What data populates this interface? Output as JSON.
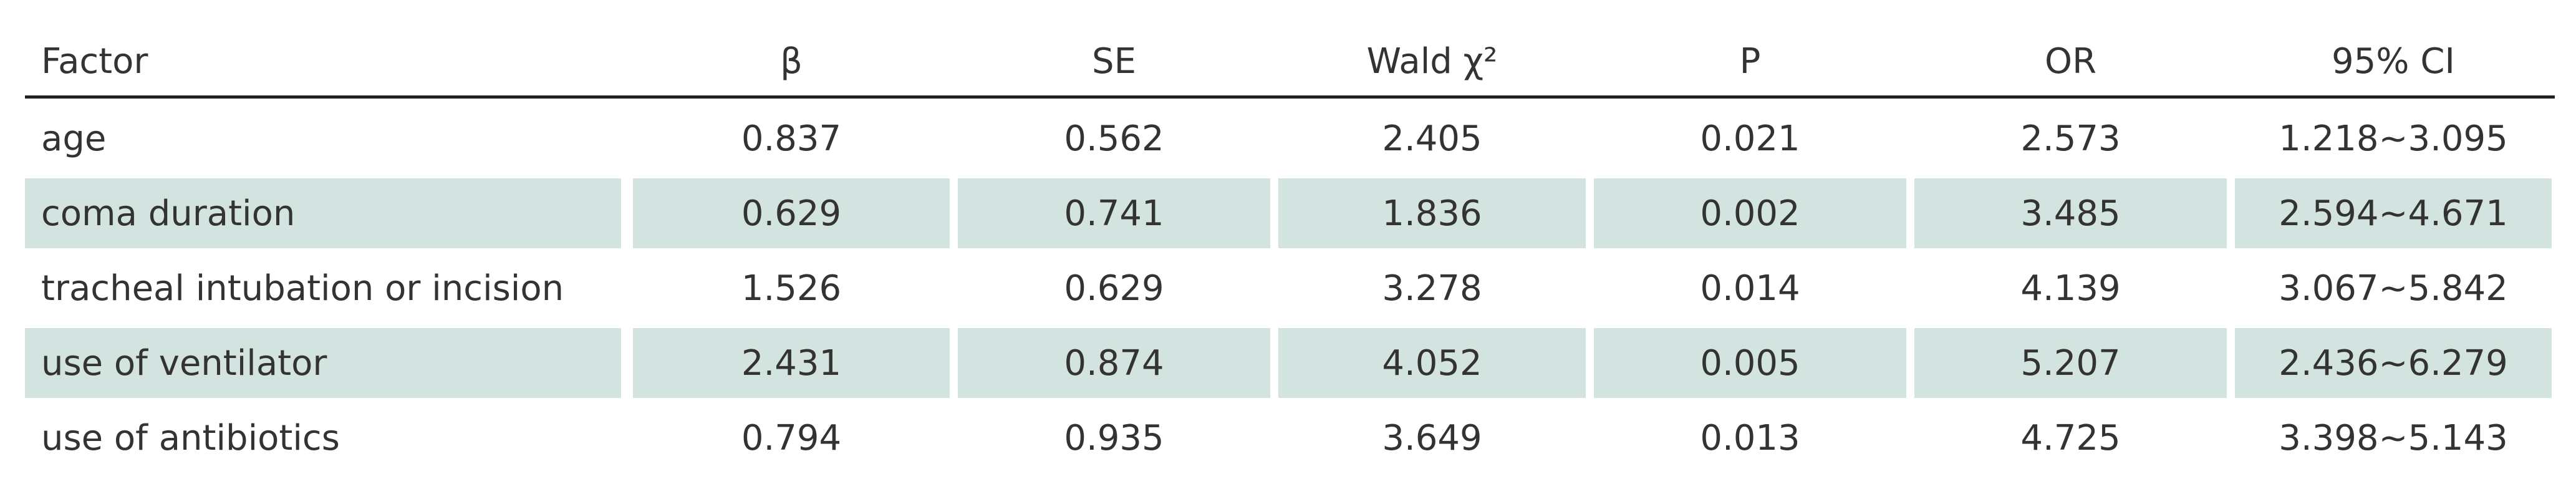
{
  "table": {
    "header": [
      "Factor",
      "β",
      "SE",
      "Wald χ²",
      "P",
      "OR",
      "95% CI"
    ],
    "rows": [
      [
        "age",
        "0.837",
        "0.562",
        "2.405",
        "0.021",
        "2.573",
        "1.218~3.095"
      ],
      [
        "coma duration",
        "0.629",
        "0.741",
        "1.836",
        "0.002",
        "3.485",
        "2.594~4.671"
      ],
      [
        "tracheal intubation or incision",
        "1.526",
        "0.629",
        "3.278",
        "0.014",
        "4.139",
        "3.067~5.842"
      ],
      [
        "use of ventilator",
        "2.431",
        "0.874",
        "4.052",
        "0.005",
        "5.207",
        "2.436~6.279"
      ],
      [
        "use of antibiotics",
        "0.794",
        "0.935",
        "3.649",
        "0.013",
        "4.725",
        "3.398~5.143"
      ]
    ]
  }
}
